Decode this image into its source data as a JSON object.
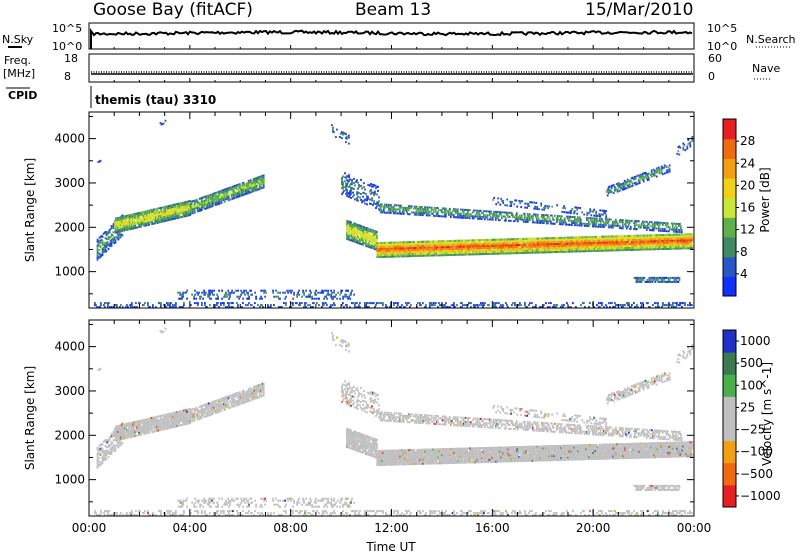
{
  "header": {
    "station": "Goose Bay (fitACF)",
    "beam": "Beam 13",
    "date": "15/Mar/2010"
  },
  "strip_labels": {
    "nsky": "N.Sky",
    "nsearch": "N.Search",
    "freq": "Freq.",
    "mhz": "[MHz]",
    "nave": "Nave",
    "cpid": "CPID",
    "pow10_5": "10^5",
    "pow10_0": "10^0",
    "freq_hi": "18",
    "freq_lo": "8",
    "nave_hi": "60",
    "nave_lo": "0",
    "cpid_text": "themis (tau) 3310"
  },
  "chart_data": [
    {
      "type": "heatmap",
      "title": "",
      "xlabel": "Time UT",
      "ylabel": "Slant Range [km]",
      "x_ticks": [
        "00:00",
        "04:00",
        "08:00",
        "12:00",
        "16:00",
        "20:00",
        "00:00"
      ],
      "x_hours": [
        0,
        4,
        8,
        12,
        16,
        20,
        24
      ],
      "y_ticks": [
        1000,
        2000,
        3000,
        4000
      ],
      "ylim": [
        180,
        4600
      ],
      "colorbar": {
        "label": "Power [dB]",
        "ticks": [
          4,
          8,
          12,
          16,
          20,
          24,
          28
        ],
        "range": [
          0,
          32
        ],
        "colors": [
          "#1030ff",
          "#2a56c8",
          "#3f8a60",
          "#5fb04a",
          "#c9e63a",
          "#f0d018",
          "#f0a010",
          "#f06a10",
          "#e62020"
        ]
      }
    },
    {
      "type": "heatmap",
      "title": "",
      "xlabel": "Time UT",
      "ylabel": "Slant Range [km]",
      "x_ticks": [
        "00:00",
        "04:00",
        "08:00",
        "12:00",
        "16:00",
        "20:00",
        "00:00"
      ],
      "x_hours": [
        0,
        4,
        8,
        12,
        16,
        20,
        24
      ],
      "y_ticks": [
        1000,
        2000,
        3000,
        4000
      ],
      "ylim": [
        180,
        4600
      ],
      "colorbar": {
        "label": "Velocity [m s^-1]",
        "ticks": [
          1000,
          500,
          100,
          25,
          -25,
          -100,
          -500,
          -1000
        ],
        "tick_text": [
          "1000",
          "500",
          "100",
          "25",
          "−25",
          "−100",
          "−500",
          "−1000"
        ],
        "colors": [
          "#2030c8",
          "#3a7a50",
          "#4ab04a",
          "#c0c0c0",
          "#c0c0c0",
          "#f0a010",
          "#f06a10",
          "#e62020"
        ]
      }
    }
  ]
}
